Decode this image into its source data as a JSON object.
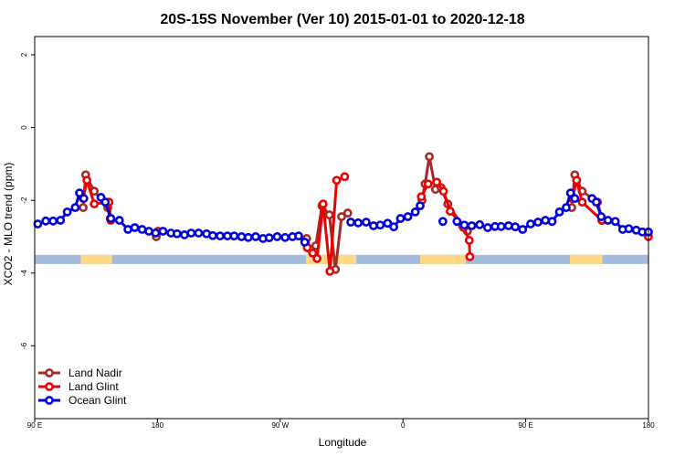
{
  "chart_data": {
    "type": "line",
    "title": "20S-15S November (Ver 10)   2015-01-01 to 2020-12-18",
    "xlabel": "Longitude",
    "ylabel": "XCO2 - MLO trend (ppm)",
    "xlim": [
      0,
      100
    ],
    "ylim": [
      -8,
      2.5
    ],
    "x_ticks": [
      {
        "pos": 0,
        "label": "90 E"
      },
      {
        "pos": 20,
        "label": "180"
      },
      {
        "pos": 40,
        "label": "90 W"
      },
      {
        "pos": 60,
        "label": "0"
      },
      {
        "pos": 80,
        "label": "90 E"
      },
      {
        "pos": 100,
        "label": "180"
      }
    ],
    "y_ticks": [
      2,
      0,
      -2,
      -4,
      -6
    ],
    "band": {
      "y_top": -3.5,
      "y_bottom": -3.75,
      "ocean_color": "#a3bcdc",
      "land_color": "#fdd985",
      "land_segments": [
        [
          7.5,
          12.6
        ],
        [
          44.2,
          52.4
        ],
        [
          62.8,
          70.2
        ],
        [
          87.2,
          92.5
        ]
      ]
    },
    "series": [
      {
        "name": "Land Nadir",
        "color": "#a52a2a",
        "segments": [
          [
            [
              7.9,
              -2.2
            ],
            [
              8.3,
              -1.3
            ],
            [
              9.7,
              -1.75
            ],
            [
              11.9,
              -2.2
            ],
            [
              12.3,
              -2.5
            ]
          ],
          [
            [
              19.8,
              -3.0
            ]
          ],
          [
            [
              44.3,
              -3.05
            ],
            [
              45.0,
              -3.35
            ],
            [
              45.8,
              -3.25
            ],
            [
              46.8,
              -2.15
            ],
            [
              48.0,
              -2.4
            ],
            [
              49.0,
              -3.9
            ],
            [
              50.0,
              -2.45
            ],
            [
              51.0,
              -2.35
            ]
          ],
          [
            [
              63.1,
              -2.0
            ],
            [
              63.6,
              -1.55
            ],
            [
              64.3,
              -0.8
            ],
            [
              65.3,
              -1.7
            ],
            [
              66.2,
              -1.65
            ],
            [
              67.3,
              -2.1
            ],
            [
              69.7,
              -2.7
            ],
            [
              70.5,
              -2.85
            ]
          ],
          [
            [
              87.5,
              -2.2
            ],
            [
              88.0,
              -1.3
            ],
            [
              89.2,
              -1.75
            ],
            [
              91.7,
              -2.05
            ],
            [
              92.5,
              -2.55
            ]
          ]
        ]
      },
      {
        "name": "Land Glint",
        "color": "#ee0000",
        "segments": [
          [
            [
              7.9,
              -1.95
            ],
            [
              8.5,
              -1.45
            ],
            [
              9.7,
              -2.1
            ],
            [
              12.1,
              -2.05
            ],
            [
              12.4,
              -2.55
            ]
          ],
          [
            [
              20.1,
              -2.85
            ]
          ],
          [
            [
              44.4,
              -3.3
            ],
            [
              45.3,
              -3.45
            ],
            [
              46.0,
              -3.6
            ],
            [
              47.0,
              -2.1
            ],
            [
              48.1,
              -3.95
            ],
            [
              49.2,
              -1.45
            ],
            [
              50.5,
              -1.35
            ]
          ],
          [
            [
              63.0,
              -1.9
            ],
            [
              64.1,
              -1.55
            ],
            [
              65.5,
              -1.5
            ],
            [
              66.6,
              -1.75
            ],
            [
              67.7,
              -2.3
            ],
            [
              69.9,
              -2.75
            ],
            [
              70.8,
              -3.1
            ],
            [
              70.9,
              -3.55
            ]
          ],
          [
            [
              87.6,
              -1.95
            ],
            [
              88.3,
              -1.45
            ],
            [
              89.2,
              -2.05
            ],
            [
              92.4,
              -2.55
            ]
          ],
          [
            [
              100,
              -3.0
            ]
          ]
        ]
      },
      {
        "name": "Ocean Glint",
        "color": "#0000dd",
        "segments": [
          [
            [
              0.5,
              -2.65
            ],
            [
              1.8,
              -2.57
            ],
            [
              3.0,
              -2.57
            ],
            [
              4.2,
              -2.55
            ],
            [
              5.3,
              -2.32
            ],
            [
              6.6,
              -2.2
            ],
            [
              7.3,
              -1.8
            ],
            [
              8.0,
              -1.95
            ]
          ],
          [
            [
              10.8,
              -1.92
            ],
            [
              11.5,
              -2.05
            ],
            [
              12.4,
              -2.5
            ],
            [
              13.8,
              -2.55
            ],
            [
              15.2,
              -2.8
            ],
            [
              16.3,
              -2.75
            ],
            [
              17.5,
              -2.8
            ],
            [
              18.6,
              -2.85
            ],
            [
              19.7,
              -2.9
            ],
            [
              20.9,
              -2.85
            ],
            [
              22.2,
              -2.9
            ],
            [
              23.2,
              -2.92
            ],
            [
              24.4,
              -2.95
            ],
            [
              25.5,
              -2.9
            ],
            [
              26.7,
              -2.9
            ],
            [
              28.0,
              -2.92
            ],
            [
              29.0,
              -2.97
            ],
            [
              30.2,
              -2.98
            ],
            [
              31.4,
              -2.98
            ],
            [
              32.5,
              -2.98
            ],
            [
              33.7,
              -3.0
            ],
            [
              34.8,
              -3.02
            ],
            [
              36.0,
              -3.0
            ],
            [
              37.2,
              -3.05
            ],
            [
              38.2,
              -3.03
            ],
            [
              39.5,
              -3.0
            ],
            [
              40.8,
              -3.02
            ],
            [
              42.0,
              -3.0
            ],
            [
              43.0,
              -2.98
            ],
            [
              44.0,
              -3.15
            ]
          ],
          [
            [
              51.5,
              -2.6
            ],
            [
              52.7,
              -2.62
            ],
            [
              54.0,
              -2.6
            ],
            [
              55.2,
              -2.7
            ],
            [
              56.3,
              -2.68
            ],
            [
              57.5,
              -2.63
            ],
            [
              58.5,
              -2.73
            ],
            [
              59.6,
              -2.5
            ],
            [
              60.8,
              -2.45
            ],
            [
              62.0,
              -2.32
            ],
            [
              62.8,
              -2.15
            ]
          ],
          [
            [
              66.5,
              -2.58
            ]
          ],
          [
            [
              68.8,
              -2.58
            ],
            [
              70.0,
              -2.68
            ],
            [
              71.2,
              -2.7
            ],
            [
              72.5,
              -2.67
            ],
            [
              73.8,
              -2.75
            ],
            [
              75.0,
              -2.72
            ],
            [
              76.0,
              -2.72
            ],
            [
              77.2,
              -2.7
            ],
            [
              78.3,
              -2.73
            ],
            [
              79.5,
              -2.8
            ],
            [
              80.8,
              -2.65
            ],
            [
              82.0,
              -2.6
            ],
            [
              83.2,
              -2.55
            ],
            [
              84.3,
              -2.58
            ],
            [
              85.5,
              -2.32
            ],
            [
              86.6,
              -2.2
            ],
            [
              87.3,
              -1.8
            ],
            [
              88.0,
              -1.95
            ]
          ],
          [
            [
              90.8,
              -1.95
            ],
            [
              91.5,
              -2.05
            ],
            [
              92.3,
              -2.45
            ],
            [
              93.4,
              -2.55
            ],
            [
              94.6,
              -2.58
            ],
            [
              95.8,
              -2.8
            ],
            [
              96.8,
              -2.78
            ],
            [
              98.0,
              -2.82
            ],
            [
              99.0,
              -2.87
            ],
            [
              100,
              -2.87
            ]
          ]
        ]
      }
    ],
    "legend": {
      "position": "bottom-left",
      "entries": [
        "Land Nadir",
        "Land Glint",
        "Ocean Glint"
      ]
    }
  }
}
